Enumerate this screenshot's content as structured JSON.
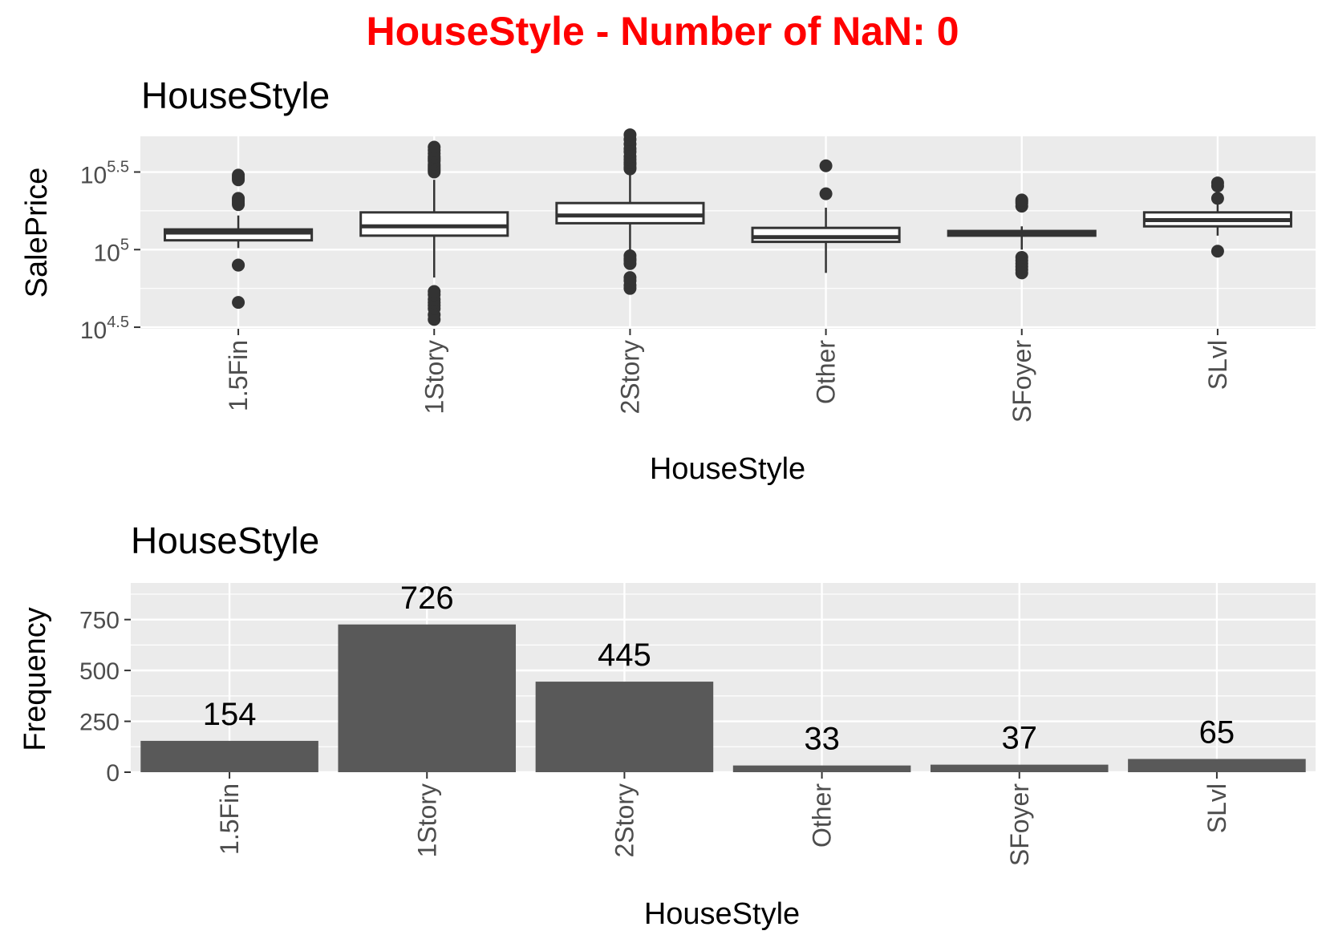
{
  "page_title": "HouseStyle - Number of NaN: 0",
  "colors": {
    "title": "#ff0000",
    "panel_background": "#ebebeb",
    "gridline": "#ffffff",
    "bar_fill": "#595959",
    "box_fill": "#ffffff",
    "box_stroke": "#333333",
    "tick_label": "#4d4d4d",
    "text": "#000000"
  },
  "chart_data": [
    {
      "type": "box",
      "title": "HouseStyle",
      "xlabel": "HouseStyle",
      "ylabel": "SalePrice",
      "y_scale": "log10",
      "ylim": [
        4.49,
        5.73
      ],
      "y_ticks": [
        {
          "value": 4.5,
          "base": "10",
          "exp": "4.5"
        },
        {
          "value": 5.0,
          "base": "10",
          "exp": "5"
        },
        {
          "value": 5.5,
          "base": "10",
          "exp": "5.5"
        }
      ],
      "grid": true,
      "categories": [
        "1.5Fin",
        "1Story",
        "2Story",
        "Other",
        "SFoyer",
        "SLvl"
      ],
      "boxes": [
        {
          "category": "1.5Fin",
          "whisker_low": 5.01,
          "q1": 5.06,
          "median": 5.11,
          "q3": 5.13,
          "whisker_high": 5.22,
          "outliers": [
            4.9,
            4.9,
            4.66,
            5.47,
            5.46,
            5.45,
            5.48,
            5.31,
            5.3,
            5.29,
            5.33,
            5.32
          ]
        },
        {
          "category": "1Story",
          "whisker_low": 4.82,
          "q1": 5.09,
          "median": 5.15,
          "q3": 5.24,
          "whisker_high": 5.45,
          "outliers": [
            4.55,
            4.58,
            4.62,
            4.64,
            4.66,
            4.68,
            4.71,
            4.73,
            5.5,
            5.51,
            5.52,
            5.53,
            5.54,
            5.55,
            5.57,
            5.58,
            5.59,
            5.6,
            5.62,
            5.64,
            5.66
          ]
        },
        {
          "category": "2Story",
          "whisker_low": 4.98,
          "q1": 5.17,
          "median": 5.22,
          "q3": 5.3,
          "whisker_high": 5.5,
          "outliers": [
            4.75,
            4.77,
            4.8,
            4.82,
            4.91,
            4.93,
            4.94,
            4.96,
            5.52,
            5.53,
            5.55,
            5.56,
            5.58,
            5.6,
            5.63,
            5.65,
            5.68,
            5.71,
            5.74
          ]
        },
        {
          "category": "Other",
          "whisker_low": 4.85,
          "q1": 5.05,
          "median": 5.08,
          "q3": 5.14,
          "whisker_high": 5.27,
          "outliers": [
            5.36,
            5.54
          ]
        },
        {
          "category": "SFoyer",
          "whisker_low": 5.0,
          "q1": 5.09,
          "median": 5.1,
          "q3": 5.12,
          "whisker_high": 5.15,
          "outliers": [
            4.95,
            4.93,
            4.91,
            4.89,
            4.87,
            4.85,
            5.28,
            5.3,
            5.31,
            5.32
          ]
        },
        {
          "category": "SLvl",
          "whisker_low": 5.09,
          "q1": 5.15,
          "median": 5.19,
          "q3": 5.24,
          "whisker_high": 5.3,
          "outliers": [
            4.99,
            5.33,
            5.41,
            5.43
          ]
        }
      ]
    },
    {
      "type": "bar",
      "title": "HouseStyle",
      "xlabel": "HouseStyle",
      "ylabel": "Frequency",
      "ylim": [
        0,
        930
      ],
      "y_ticks": [
        0,
        250,
        500,
        750
      ],
      "grid": true,
      "categories": [
        "1.5Fin",
        "1Story",
        "2Story",
        "Other",
        "SFoyer",
        "SLvl"
      ],
      "values": [
        154,
        726,
        445,
        33,
        37,
        65
      ],
      "data_labels": [
        "154",
        "726",
        "445",
        "33",
        "37",
        "65"
      ]
    }
  ]
}
